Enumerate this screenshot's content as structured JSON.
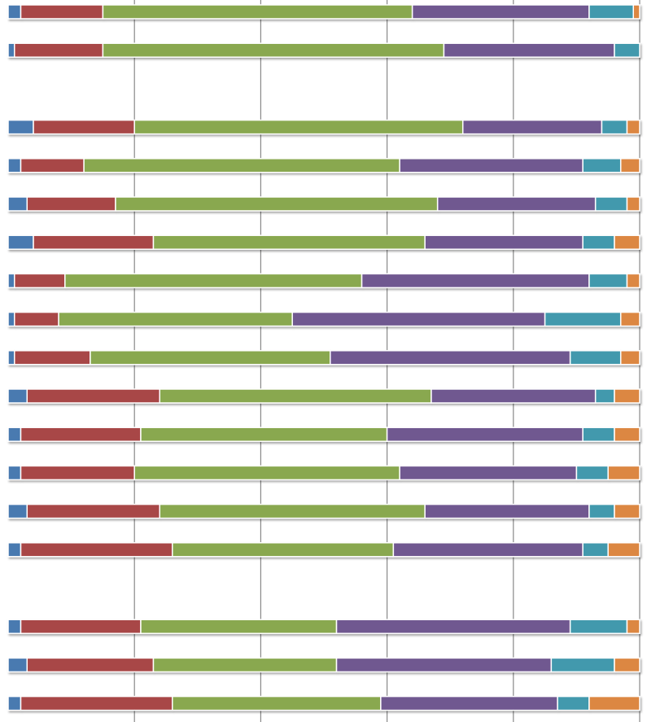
{
  "chart_data": {
    "type": "bar",
    "orientation": "horizontal",
    "stacked": true,
    "percent_stacked": true,
    "xlim": [
      0,
      100
    ],
    "grid": true,
    "title": "",
    "xlabel": "",
    "ylabel": "",
    "legend": null,
    "rows": [
      {
        "values": [
          2,
          13,
          49,
          28,
          7,
          1
        ]
      },
      {
        "values": [
          1,
          14,
          54,
          27,
          4,
          0
        ]
      },
      null,
      {
        "values": [
          4,
          16,
          52,
          22,
          4,
          2
        ]
      },
      {
        "values": [
          2,
          10,
          50,
          29,
          6,
          3
        ]
      },
      {
        "values": [
          3,
          14,
          51,
          25,
          5,
          2
        ]
      },
      {
        "values": [
          4,
          19,
          43,
          25,
          5,
          4
        ]
      },
      {
        "values": [
          1,
          8,
          47,
          36,
          6,
          2
        ]
      },
      {
        "values": [
          1,
          7,
          37,
          40,
          12,
          3
        ]
      },
      {
        "values": [
          1,
          12,
          38,
          38,
          8,
          3
        ]
      },
      {
        "values": [
          3,
          21,
          43,
          26,
          3,
          4
        ]
      },
      {
        "values": [
          2,
          19,
          39,
          31,
          5,
          4
        ]
      },
      {
        "values": [
          2,
          18,
          42,
          28,
          5,
          5
        ]
      },
      {
        "values": [
          3,
          21,
          42,
          26,
          4,
          4
        ]
      },
      {
        "values": [
          2,
          24,
          35,
          30,
          4,
          5
        ]
      },
      null,
      {
        "values": [
          2,
          19,
          31,
          37,
          9,
          2
        ]
      },
      {
        "values": [
          3,
          20,
          29,
          34,
          10,
          4
        ]
      },
      {
        "values": [
          2,
          24,
          33,
          28,
          5,
          8
        ]
      }
    ]
  },
  "colors": [
    "#4a7ab0",
    "#a84747",
    "#89a84f",
    "#6f5890",
    "#4399ad",
    "#dc8743"
  ],
  "grid_color": "#888888"
}
